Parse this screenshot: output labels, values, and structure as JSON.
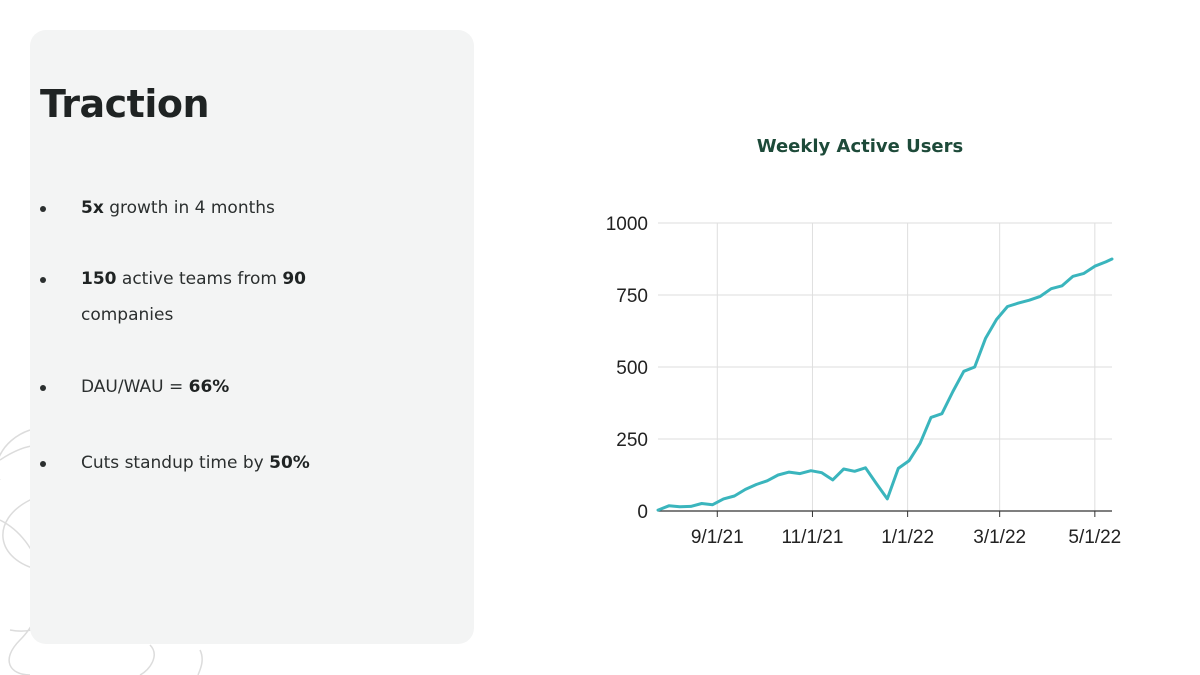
{
  "slide": {
    "title": "Traction",
    "bullets": [
      {
        "bold1": "5x",
        "text1": " growth in 4 months"
      },
      {
        "bold1": "150",
        "text1": " active teams from ",
        "bold2": "90",
        "text2": " companies"
      },
      {
        "text1": "DAU/WAU = ",
        "bold1": "66%"
      },
      {
        "text1": "Cuts standup time by ",
        "bold1": "50%"
      }
    ]
  },
  "colors": {
    "card_background": "#f3f4f4",
    "line": "#3ab5bd",
    "chart_title": "#1d4a39",
    "grid": "#dedede"
  },
  "chart_data": {
    "type": "line",
    "title": "Weekly Active Users",
    "xlabel": "",
    "ylabel": "",
    "ylim": [
      0,
      1000
    ],
    "xlim": [
      "2021-07-25",
      "2022-05-12"
    ],
    "yticks": [
      0,
      250,
      500,
      750,
      1000
    ],
    "xticks": [
      "2021-09-01",
      "2021-11-01",
      "2022-01-01",
      "2022-03-01",
      "2022-05-01"
    ],
    "xtick_labels": [
      "9/1/21",
      "11/1/21",
      "1/1/22",
      "3/1/22",
      "5/1/22"
    ],
    "grid": true,
    "legend": "none",
    "series": [
      {
        "x": [
          "2021-07-25",
          "2021-08-01",
          "2021-08-08",
          "2021-08-15",
          "2021-08-22",
          "2021-08-29",
          "2021-09-05",
          "2021-09-12",
          "2021-09-19",
          "2021-09-26",
          "2021-10-03",
          "2021-10-10",
          "2021-10-17",
          "2021-10-24",
          "2021-10-31",
          "2021-11-07",
          "2021-11-14",
          "2021-11-21",
          "2021-11-28",
          "2021-12-05",
          "2021-12-12",
          "2021-12-19",
          "2021-12-26",
          "2022-01-02",
          "2022-01-09",
          "2022-01-16",
          "2022-01-23",
          "2022-01-30",
          "2022-02-06",
          "2022-02-13",
          "2022-02-20",
          "2022-02-27",
          "2022-03-06",
          "2022-03-13",
          "2022-03-20",
          "2022-03-27",
          "2022-04-03",
          "2022-04-10",
          "2022-04-17",
          "2022-04-24",
          "2022-05-01",
          "2022-05-08",
          "2022-05-12"
        ],
        "values": [
          3,
          18,
          15,
          16,
          26,
          22,
          42,
          52,
          75,
          92,
          105,
          125,
          135,
          130,
          140,
          133,
          108,
          146,
          138,
          150,
          95,
          42,
          148,
          175,
          235,
          325,
          338,
          415,
          485,
          500,
          600,
          665,
          710,
          722,
          732,
          745,
          772,
          782,
          815,
          825,
          850,
          865,
          875
        ]
      }
    ]
  }
}
